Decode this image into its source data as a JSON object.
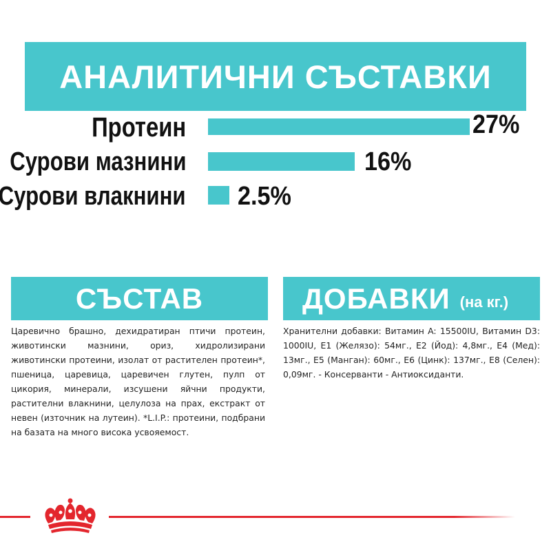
{
  "analytical": {
    "title": "АНАЛИТИЧНИ СЪСТАВКИ",
    "items": [
      {
        "label": "Протеин",
        "value": "27%",
        "percent": 27
      },
      {
        "label": "Сурови мазнини",
        "value": "16%",
        "percent": 16
      },
      {
        "label": "Сурови влакнини",
        "value": "2.5%",
        "percent": 2.5
      }
    ]
  },
  "composition": {
    "title": "СЪСТАВ",
    "text": "Царевично брашно, дехидратиран птичи протеин, животински мазнини, ориз, хидролизирани животински протеини, изолат от растителен протеин*, пшеница, царевица, царевичен глутен, пулп от цикория, минерали, изсушени яйчни продукти, растителни влакнини, целулоза на прах, екстракт от невен (източник на лутеин). *L.I.P.: протеини, подбрани на базата на много висока усвояемост."
  },
  "additives": {
    "title": "ДОБАВКИ",
    "subtitle": "(на кг.)",
    "text": "Хранителни добавки: Витамин A: 15500IU, Витамин D3: 1000IU, E1 (Желязо): 54мг., E2 (Йод): 4,8мг., E4 (Мед): 13мг., E5 (Манган): 60мг., E6 (Цинк): 137мг., E8 (Селен): 0,09мг. - Консерванти - Антиоксиданти."
  },
  "colors": {
    "accent": "#48c6cc",
    "brand_red": "#e3262d"
  },
  "footer": {
    "logo_icon": "crown-icon"
  }
}
